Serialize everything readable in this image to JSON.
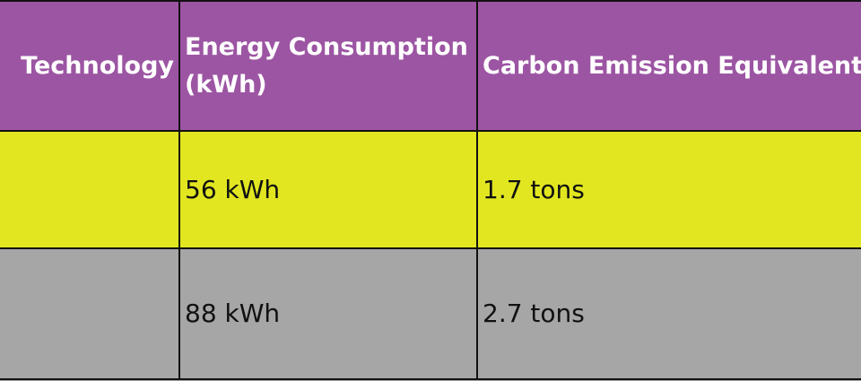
{
  "table": {
    "headers": [
      "Technology",
      "Energy Consumption (kWh)",
      "Carbon Emission Equivalent"
    ],
    "rows": [
      [
        "",
        "56 kWh",
        "1.7 tons"
      ],
      [
        "",
        "88 kWh",
        "2.7 tons"
      ]
    ]
  },
  "colors": {
    "header_bg": "#9c55a3",
    "row1_bg": "#e2e620",
    "row2_bg": "#a6a6a6",
    "border": "#111111",
    "header_text": "#ffffff"
  }
}
